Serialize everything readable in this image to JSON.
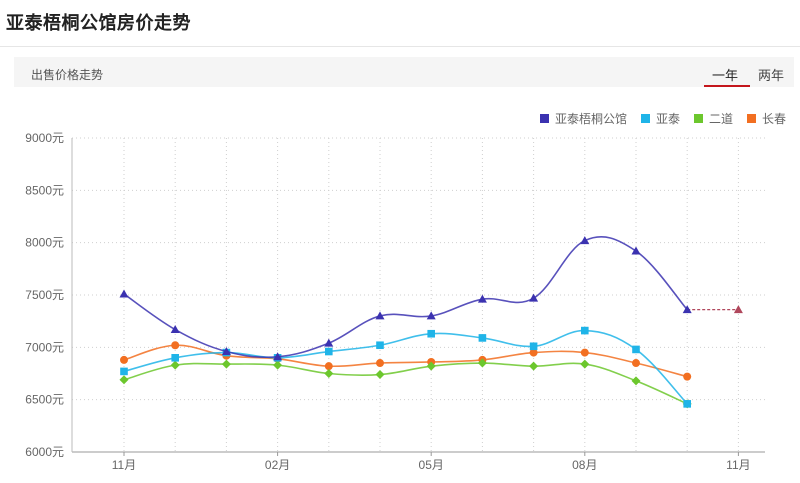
{
  "page": {
    "title": "亚泰梧桐公馆房价走势",
    "section_label": "出售价格走势",
    "tabs": [
      {
        "label": "一年",
        "active": true
      },
      {
        "label": "两年",
        "active": false
      }
    ]
  },
  "chart_data": {
    "type": "line",
    "title": "",
    "xlabel": "",
    "ylabel": "",
    "ylim": [
      6000,
      9000
    ],
    "yticks": [
      6000,
      6500,
      7000,
      7500,
      8000,
      8500,
      9000
    ],
    "ytick_labels": [
      "6000元",
      "6500元",
      "7000元",
      "7500元",
      "8000元",
      "8500元",
      "9000元"
    ],
    "x_categories": [
      "2016-11",
      "2016-12",
      "2017-01",
      "2017-02",
      "2017-03",
      "2017-04",
      "2017-05",
      "2017-06",
      "2017-07",
      "2017-08",
      "2017-09",
      "2017-10",
      "2017-11"
    ],
    "xtick_labels": [
      {
        "index": 0,
        "label": "11月"
      },
      {
        "index": 3,
        "label": "02月"
      },
      {
        "index": 6,
        "label": "05月"
      },
      {
        "index": 9,
        "label": "08月"
      },
      {
        "index": 12,
        "label": "11月"
      }
    ],
    "grid": true,
    "legend_position": "top-right",
    "series": [
      {
        "name": "亚泰梧桐公馆",
        "color": "#3b32b0",
        "marker": "triangle",
        "values": [
          7510,
          7170,
          6960,
          6910,
          7040,
          7300,
          7300,
          7460,
          7470,
          8020,
          7920,
          7360,
          null
        ],
        "forecast": [
          null,
          null,
          null,
          null,
          null,
          null,
          null,
          null,
          null,
          null,
          null,
          7360,
          7360
        ]
      },
      {
        "name": "亚泰",
        "color": "#1fb4e8",
        "marker": "square",
        "values": [
          6770,
          6900,
          6950,
          6900,
          6960,
          7020,
          7130,
          7090,
          7010,
          7160,
          6980,
          6460,
          null
        ]
      },
      {
        "name": "二道",
        "color": "#6cc72d",
        "marker": "diamond",
        "values": [
          6690,
          6830,
          6840,
          6830,
          6750,
          6740,
          6820,
          6850,
          6820,
          6840,
          6680,
          6460,
          null
        ]
      },
      {
        "name": "长春",
        "color": "#f26f21",
        "marker": "circle",
        "values": [
          6880,
          7020,
          6920,
          6890,
          6820,
          6850,
          6860,
          6880,
          6950,
          6950,
          6850,
          6720,
          null
        ]
      }
    ]
  }
}
